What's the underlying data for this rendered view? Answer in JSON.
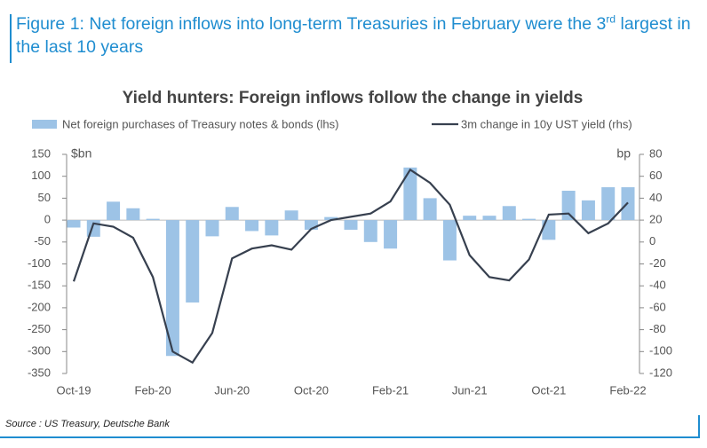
{
  "figure": {
    "title": "Figure 1: Net foreign inflows into long-term Treasuries in February were the 3",
    "title_sup": "rd",
    "title_end": " largest in the last 10 years",
    "source": "Source : US Treasury, Deutsche Bank"
  },
  "chart_data": {
    "type": "bar",
    "title": "Yield hunters: Foreign inflows follow the change in yields",
    "ylabel": "$bn",
    "y2label": "bp",
    "categories": [
      "Oct-19",
      null,
      null,
      null,
      "Feb-20",
      null,
      null,
      null,
      "Jun-20",
      null,
      null,
      null,
      "Oct-20",
      null,
      null,
      null,
      "Feb-21",
      null,
      null,
      null,
      "Jun-21",
      null,
      null,
      null,
      "Oct-21",
      null,
      null,
      null,
      "Feb-22"
    ],
    "series": [
      {
        "name": "Net foreign purchases of Treasury notes & bonds (lhs)",
        "type": "bar",
        "color": "#9dc3e6",
        "values": [
          -17,
          -38,
          42,
          27,
          3,
          -310,
          -188,
          -37,
          30,
          -25,
          -35,
          22,
          -22,
          7,
          -22,
          -50,
          -65,
          120,
          50,
          -92,
          10,
          10,
          32,
          3,
          -45,
          67,
          45,
          75,
          75
        ]
      },
      {
        "name": "3m change in 10y UST yield (rhs)",
        "type": "line",
        "axis": "y2",
        "color": "#37404f",
        "values": [
          -36,
          17,
          14,
          4,
          -32,
          -100,
          -110,
          -83,
          -15,
          -6,
          -3,
          -7,
          12,
          20,
          23,
          26,
          37,
          66,
          54,
          34,
          -12,
          -32,
          -35,
          -16,
          25,
          26,
          8,
          17,
          36
        ]
      }
    ],
    "ylim": [
      -350,
      150
    ],
    "yticks": [
      -350,
      -300,
      -250,
      -200,
      -150,
      -100,
      -50,
      0,
      50,
      100,
      150
    ],
    "y2lim": [
      -120,
      80
    ],
    "y2ticks": [
      -120,
      -100,
      -80,
      -60,
      -40,
      -20,
      0,
      20,
      40,
      60,
      80
    ]
  }
}
